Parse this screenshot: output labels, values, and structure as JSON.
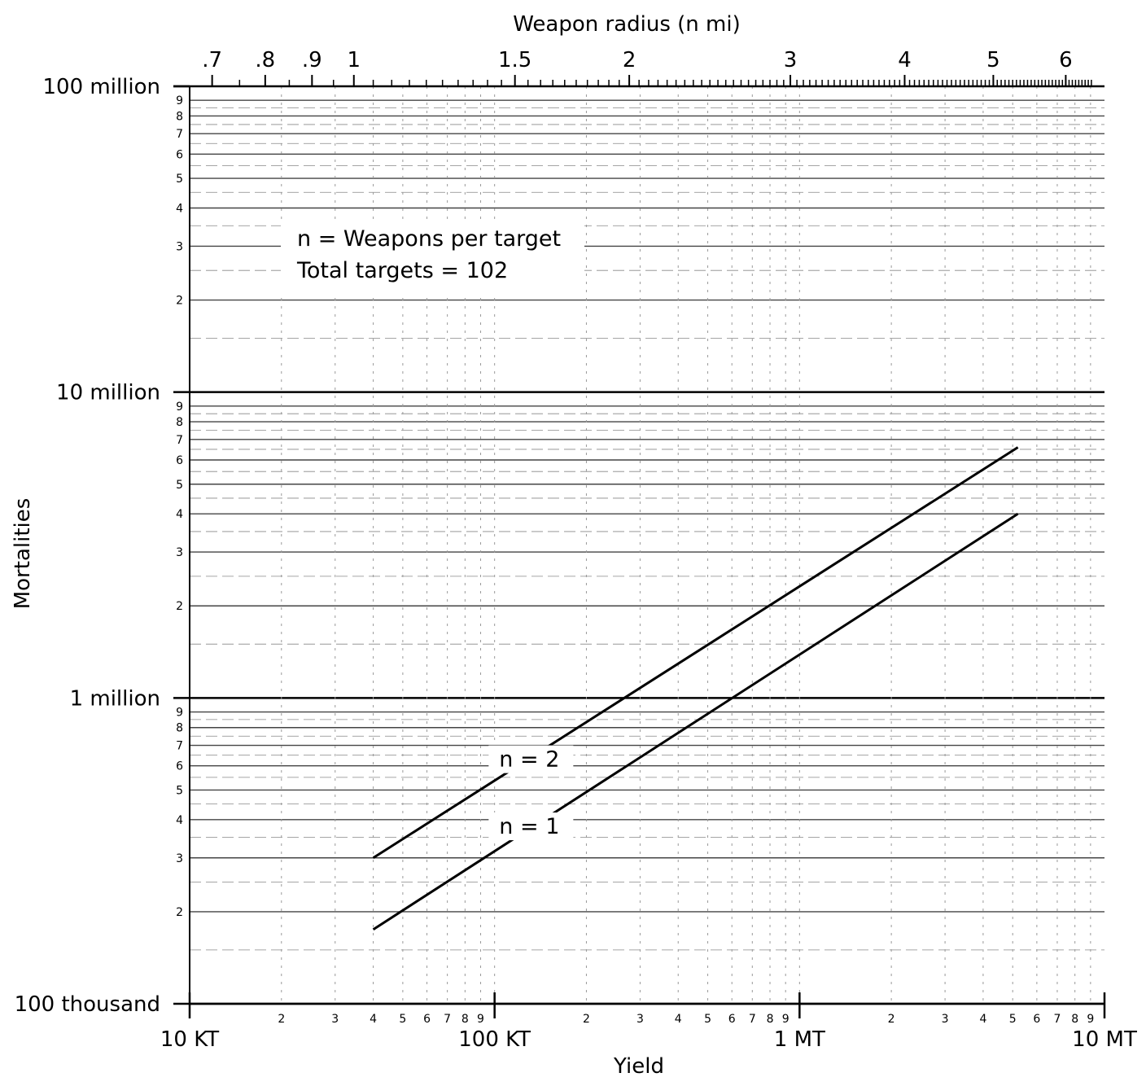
{
  "chart_data": {
    "type": "line",
    "title": "",
    "xlabel": "Yield",
    "ylabel": "Mortalities",
    "top_axis_label": "Weapon radius (n mi)",
    "x_scale": "log",
    "y_scale": "log",
    "xlim_kt": [
      10,
      10000
    ],
    "ylim": [
      100000,
      100000000
    ],
    "grid": true,
    "x_tick_labels_major": [
      {
        "label": "10 KT",
        "value_kt": 10
      },
      {
        "label": "100 KT",
        "value_kt": 100
      },
      {
        "label": "1 MT",
        "value_kt": 1000
      },
      {
        "label": "10 MT",
        "value_kt": 10000
      }
    ],
    "x_minor_tick_labels": [
      "2",
      "3",
      "4",
      "5",
      "6",
      "7",
      "8",
      "9"
    ],
    "top_tick_labels": [
      {
        "label": ".7",
        "value_nmi": 0.7
      },
      {
        "label": ".8",
        "value_nmi": 0.8
      },
      {
        "label": ".9",
        "value_nmi": 0.9
      },
      {
        "label": "1",
        "value_nmi": 1.0
      },
      {
        "label": "1.5",
        "value_nmi": 1.5
      },
      {
        "label": "2",
        "value_nmi": 2
      },
      {
        "label": "3",
        "value_nmi": 3
      },
      {
        "label": "4",
        "value_nmi": 4
      },
      {
        "label": "5",
        "value_nmi": 5
      },
      {
        "label": "6",
        "value_nmi": 6
      }
    ],
    "y_tick_labels_major": [
      {
        "label": "100 thousand",
        "value": 100000
      },
      {
        "label": "1 million",
        "value": 1000000
      },
      {
        "label": "10 million",
        "value": 10000000
      },
      {
        "label": "100 million",
        "value": 100000000
      }
    ],
    "y_minor_tick_labels": [
      "2",
      "3",
      "4",
      "5",
      "6",
      "7",
      "8",
      "9"
    ],
    "legend": {
      "lines": [
        "n = Weapons per target",
        "Total targets = 102"
      ],
      "placement": "upper-left"
    },
    "series": [
      {
        "name": "n = 2",
        "x_kt": [
          40,
          5200
        ],
        "y": [
          300000,
          6600000
        ]
      },
      {
        "name": "n = 1",
        "x_kt": [
          40,
          5200
        ],
        "y": [
          175000,
          4000000
        ]
      }
    ]
  }
}
